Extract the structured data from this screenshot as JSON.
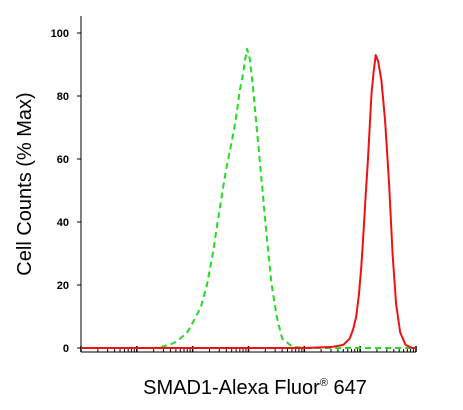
{
  "chart_data": {
    "type": "line",
    "xlabel": "SMAD1-Alexa Fluor",
    "xlabel_superscript": "®",
    "xlabel_suffix": " 647",
    "ylabel": "Cell Counts (% Max)",
    "x_scale": "log",
    "xlim": [
      1,
      1000000
    ],
    "ylim": [
      0,
      100
    ],
    "y_ticks": [
      0,
      20,
      40,
      60,
      80,
      100
    ],
    "y_tick_labels": [
      "0",
      "20",
      "40",
      "60",
      "80",
      "100"
    ],
    "x_tick_labels": [],
    "grid": false,
    "legend": "none",
    "series": [
      {
        "color": "#22dd22",
        "style": "dashed",
        "x": [
          1,
          10,
          20,
          30,
          45,
          60,
          80,
          100,
          140,
          180,
          230,
          280,
          330,
          400,
          470,
          560,
          630,
          700,
          780,
          860,
          940,
          1050,
          1200,
          1400,
          1700,
          2100,
          2600,
          3200,
          4000,
          6000,
          10000,
          100000,
          1000000
        ],
        "y": [
          0,
          0,
          0,
          0.5,
          1.5,
          3,
          5,
          8,
          13,
          20,
          30,
          40,
          48,
          57,
          63,
          70,
          76,
          82,
          86,
          91,
          95,
          92,
          83,
          70,
          54,
          36,
          20,
          10,
          3,
          0.5,
          0,
          0,
          0
        ]
      },
      {
        "color": "#ee1111",
        "style": "solid",
        "x": [
          1,
          1000,
          10000,
          30000,
          50000,
          65000,
          75000,
          85000,
          95000,
          105000,
          115000,
          125000,
          138000,
          150000,
          160000,
          175000,
          190000,
          210000,
          240000,
          280000,
          330000,
          380000,
          440000,
          520000,
          650000,
          850000,
          1000000
        ],
        "y": [
          0,
          0,
          0,
          0.3,
          1,
          3,
          6,
          10,
          17,
          26,
          37,
          48,
          60,
          72,
          81,
          88,
          93,
          91,
          85,
          72,
          52,
          30,
          14,
          5,
          1,
          0,
          0
        ]
      }
    ]
  }
}
